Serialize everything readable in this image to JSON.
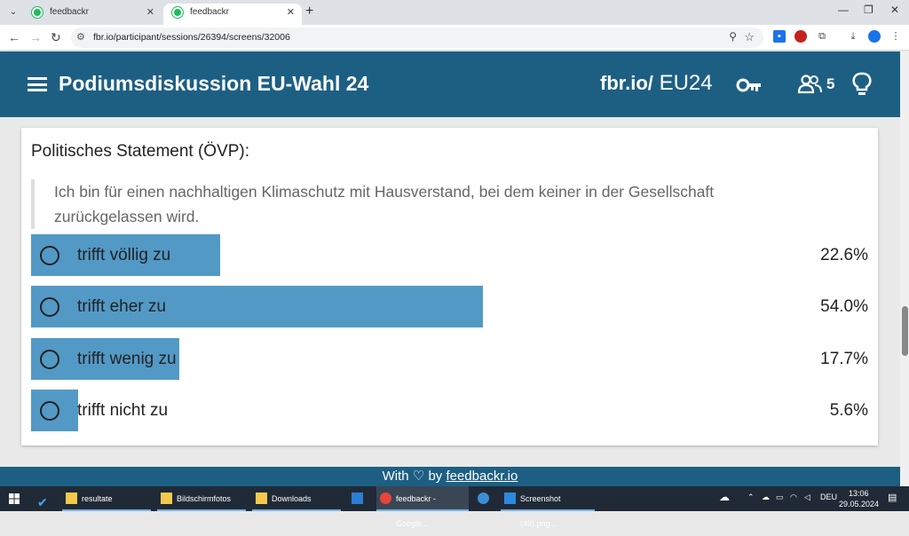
{
  "browser": {
    "tabs": [
      {
        "title": "feedbackr",
        "active": false
      },
      {
        "title": "feedbackr",
        "active": true
      }
    ],
    "url": "fbr.io/participant/sessions/26394/screens/32006"
  },
  "header": {
    "title": "Podiumsdiskussion EU-Wahl 24",
    "brand_prefix": "fbr.io/",
    "brand_code": "EU24",
    "participants": "5"
  },
  "question": {
    "title": "Politisches Statement (ÖVP):",
    "statement": "Ich bin für einen nachhaltigen Klimaschutz mit Hausverstand, bei dem keiner in der Gesellschaft zurückgelassen wird.",
    "options": [
      {
        "label": "trifft völlig zu",
        "percent": "22.6%",
        "share": 0.226
      },
      {
        "label": "trifft eher zu",
        "percent": "54.0%",
        "share": 0.54
      },
      {
        "label": "trifft wenig zu",
        "percent": "17.7%",
        "share": 0.177
      },
      {
        "label": "trifft nicht zu",
        "percent": "5.6%",
        "share": 0.056
      }
    ]
  },
  "footer": {
    "with": "With",
    "by": "by",
    "link": "feedbackr.io"
  },
  "taskbar": {
    "items": [
      "resultate",
      "Bildschirmfotos",
      "Downloads",
      "feedbackr - Google...",
      "Screenshot (49).png..."
    ],
    "lang": "DEU",
    "time": "13:06",
    "date": "29.05.2024"
  },
  "colors": {
    "header": "#1d5f83",
    "bar": "#5399c6"
  }
}
